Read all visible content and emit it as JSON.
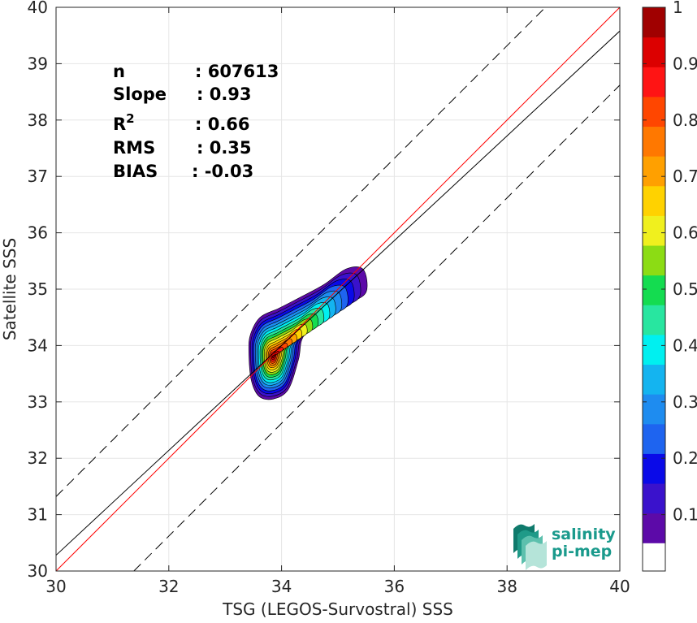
{
  "chart_data": {
    "type": "heatmap",
    "xlabel": "TSG (LEGOS-Survostral) SSS",
    "ylabel": "Satellite SSS",
    "xlim": [
      30,
      40
    ],
    "ylim": [
      30,
      40
    ],
    "xticks": [
      "30",
      "32",
      "34",
      "36",
      "38",
      "40"
    ],
    "yticks": [
      "30",
      "31",
      "32",
      "33",
      "34",
      "35",
      "36",
      "37",
      "38",
      "39",
      "40"
    ],
    "grid": true,
    "density_peak": {
      "x": 33.85,
      "y": 33.8
    },
    "density_extent": {
      "x": [
        33.4,
        35.5
      ],
      "y": [
        33.05,
        35.4
      ]
    },
    "lines": [
      {
        "kind": "one-to-one",
        "color": "#ff0000",
        "style": "solid",
        "slope": 1,
        "intercept": 0
      },
      {
        "kind": "regression",
        "color": "#000000",
        "style": "solid",
        "slope": 0.93,
        "intercept": 2.38
      },
      {
        "kind": "upper-bound",
        "color": "#000000",
        "style": "dashed",
        "slope": 1,
        "intercept": 1.32
      },
      {
        "kind": "lower-bound",
        "color": "#000000",
        "style": "dashed",
        "slope": 1,
        "intercept": -1.38
      }
    ],
    "stats": [
      {
        "key": "n",
        "value": ": 607613"
      },
      {
        "key": "Slope",
        "value": ": 0.93"
      },
      {
        "key": "R",
        "sup": "2",
        "value": ": 0.66"
      },
      {
        "key": "RMS",
        "value": ": 0.35"
      },
      {
        "key": "BIAS",
        "value": ": -0.03"
      }
    ],
    "colorbar": {
      "range": [
        0,
        1
      ],
      "ticks": [
        "0.1",
        "0.2",
        "0.3",
        "0.4",
        "0.5",
        "0.6",
        "0.7",
        "0.8",
        "0.9",
        "1"
      ],
      "levels": [
        "#ffffff",
        "#5c0aa8",
        "#3a12cc",
        "#0a0ae8",
        "#1e64f0",
        "#1e8cf0",
        "#14b4f0",
        "#00f0f0",
        "#28e6a0",
        "#14dc50",
        "#8cdc14",
        "#f0f01e",
        "#ffd200",
        "#ffa000",
        "#ff7800",
        "#ff4600",
        "#ff1414",
        "#dc0000",
        "#a00000"
      ]
    }
  },
  "logo": {
    "line1": "salinity",
    "line2": "pi-mep"
  }
}
